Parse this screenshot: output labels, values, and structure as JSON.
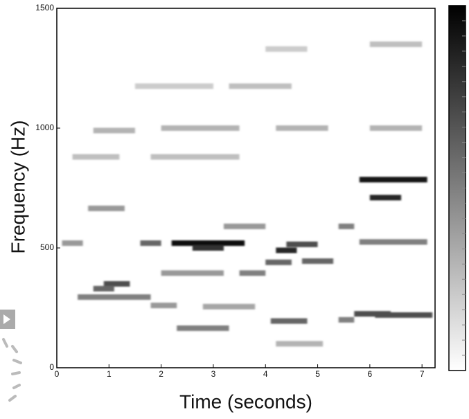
{
  "chart_data": {
    "type": "spectrogram",
    "x_label": "Time (seconds)",
    "y_label": "Frequency (Hz)",
    "xlim": [
      0,
      7.25
    ],
    "xticks": [
      0,
      1,
      2,
      3,
      4,
      5,
      6,
      7
    ],
    "ylim": [
      0,
      1500
    ],
    "yticks": [
      0,
      500,
      1000,
      1500
    ],
    "segments": [
      {
        "t0": 2.2,
        "t1": 3.6,
        "f": 520,
        "level": 0.95
      },
      {
        "t0": 2.6,
        "t1": 3.2,
        "f": 500,
        "level": 0.8
      },
      {
        "t0": 4.2,
        "t1": 4.6,
        "f": 490,
        "level": 0.85
      },
      {
        "t0": 4.4,
        "t1": 5.0,
        "f": 515,
        "level": 0.7
      },
      {
        "t0": 4.0,
        "t1": 4.5,
        "f": 440,
        "level": 0.6
      },
      {
        "t0": 4.7,
        "t1": 5.3,
        "f": 445,
        "level": 0.6
      },
      {
        "t0": 5.8,
        "t1": 7.1,
        "f": 785,
        "level": 0.9
      },
      {
        "t0": 6.0,
        "t1": 6.6,
        "f": 710,
        "level": 0.85
      },
      {
        "t0": 5.7,
        "t1": 6.4,
        "f": 225,
        "level": 0.7
      },
      {
        "t0": 6.1,
        "t1": 7.2,
        "f": 220,
        "level": 0.7
      },
      {
        "t0": 0.9,
        "t1": 1.4,
        "f": 350,
        "level": 0.7
      },
      {
        "t0": 0.7,
        "t1": 1.1,
        "f": 330,
        "level": 0.6
      },
      {
        "t0": 0.4,
        "t1": 1.8,
        "f": 295,
        "level": 0.5
      },
      {
        "t0": 2.3,
        "t1": 3.3,
        "f": 165,
        "level": 0.5
      },
      {
        "t0": 4.1,
        "t1": 4.8,
        "f": 195,
        "level": 0.6
      },
      {
        "t0": 4.2,
        "t1": 5.1,
        "f": 100,
        "level": 0.3
      },
      {
        "t0": 5.4,
        "t1": 5.7,
        "f": 590,
        "level": 0.5
      },
      {
        "t0": 3.2,
        "t1": 4.0,
        "f": 590,
        "level": 0.4
      },
      {
        "t0": 1.6,
        "t1": 2.0,
        "f": 520,
        "level": 0.6
      },
      {
        "t0": 0.1,
        "t1": 0.5,
        "f": 520,
        "level": 0.4
      },
      {
        "t0": 5.8,
        "t1": 7.1,
        "f": 525,
        "level": 0.5
      },
      {
        "t0": 0.6,
        "t1": 1.3,
        "f": 665,
        "level": 0.4
      },
      {
        "t0": 2.0,
        "t1": 3.2,
        "f": 395,
        "level": 0.4
      },
      {
        "t0": 3.5,
        "t1": 4.0,
        "f": 395,
        "level": 0.5
      },
      {
        "t0": 1.8,
        "t1": 2.3,
        "f": 260,
        "level": 0.4
      },
      {
        "t0": 2.8,
        "t1": 3.8,
        "f": 255,
        "level": 0.35
      },
      {
        "t0": 5.4,
        "t1": 5.7,
        "f": 200,
        "level": 0.5
      },
      {
        "t0": 0.7,
        "t1": 1.5,
        "f": 990,
        "level": 0.3
      },
      {
        "t0": 2.0,
        "t1": 3.5,
        "f": 1000,
        "level": 0.3
      },
      {
        "t0": 4.2,
        "t1": 5.2,
        "f": 1000,
        "level": 0.3
      },
      {
        "t0": 6.0,
        "t1": 7.0,
        "f": 1000,
        "level": 0.3
      },
      {
        "t0": 3.3,
        "t1": 4.5,
        "f": 1175,
        "level": 0.25
      },
      {
        "t0": 4.0,
        "t1": 4.8,
        "f": 1330,
        "level": 0.2
      },
      {
        "t0": 6.0,
        "t1": 7.0,
        "f": 1350,
        "level": 0.25
      },
      {
        "t0": 1.5,
        "t1": 3.0,
        "f": 1175,
        "level": 0.2
      },
      {
        "t0": 0.3,
        "t1": 1.2,
        "f": 880,
        "level": 0.25
      },
      {
        "t0": 1.8,
        "t1": 3.5,
        "f": 880,
        "level": 0.25
      }
    ]
  }
}
